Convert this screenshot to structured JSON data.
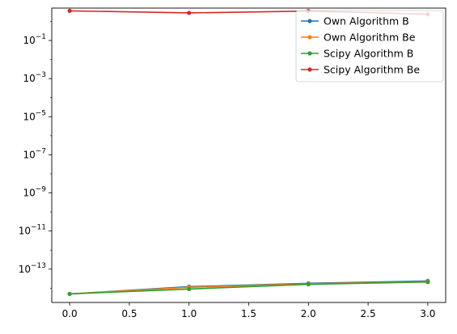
{
  "chart_data": {
    "type": "line",
    "title": "",
    "xlabel": "",
    "ylabel": "",
    "yscale": "log",
    "xlim": [
      -0.15,
      3.15
    ],
    "ylim_exponent": [
      -14.75,
      0.7
    ],
    "x_ticks": [
      0.0,
      0.5,
      1.0,
      1.5,
      2.0,
      2.5,
      3.0
    ],
    "x_tick_labels": [
      "0.0",
      "0.5",
      "1.0",
      "1.5",
      "2.0",
      "2.5",
      "3.0"
    ],
    "y_ticks_exponent": [
      -13,
      -11,
      -9,
      -7,
      -5,
      -3,
      -1
    ],
    "y_tick_labels": [
      "10^-13",
      "10^-11",
      "10^-9",
      "10^-7",
      "10^-5",
      "10^-3",
      "10^-1"
    ],
    "grid": false,
    "legend_placement": "top-right",
    "series": [
      {
        "name": "Own Algorithm B",
        "color": "#1f77b4",
        "x": [
          0,
          1,
          2,
          3
        ],
        "y": [
          5e-15,
          1.2e-14,
          1.8e-14,
          2.4e-14
        ]
      },
      {
        "name": "Own Algorithm Be",
        "color": "#ff7f0e",
        "x": [
          0,
          1,
          2,
          3
        ],
        "y": [
          5e-15,
          1.1e-14,
          1.7e-14,
          2.2e-14
        ]
      },
      {
        "name": "Scipy Algorithm B",
        "color": "#2ca02c",
        "x": [
          0,
          1,
          2,
          3
        ],
        "y": [
          5e-15,
          9e-15,
          1.6e-14,
          2.1e-14
        ]
      },
      {
        "name": "Scipy Algorithm Be",
        "color": "#d62728",
        "x": [
          0,
          1,
          2,
          3
        ],
        "y": [
          3.6,
          2.8,
          3.5,
          2.4
        ]
      }
    ]
  }
}
